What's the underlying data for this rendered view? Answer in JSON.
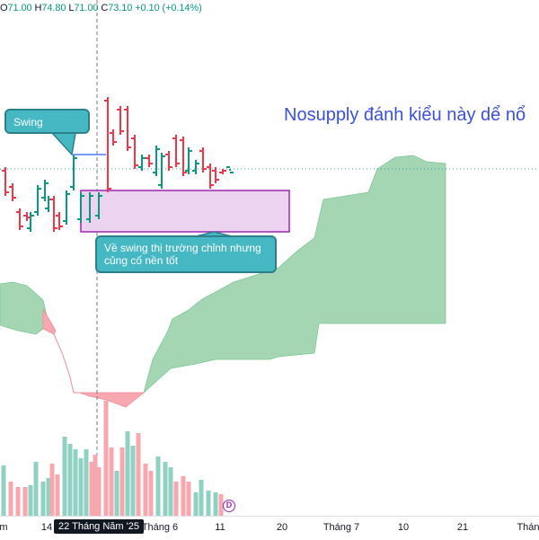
{
  "header": {
    "open_label": "O",
    "open": "71.00",
    "high_label": "H",
    "high": "74.80",
    "low_label": "L",
    "low": "71.00",
    "close_label": "C",
    "close": "73.10",
    "change": "+0.10 (+0.14%)"
  },
  "annotations": {
    "swing_label": "Swing",
    "note_label": "Về swing thị trường chỉnh nhưng củng cố nền tốt",
    "big_note": "Nosupply đánh kiểu này dể nổ"
  },
  "x_axis": {
    "ticks": [
      "m",
      "14",
      "22 Tháng Năm '25",
      "Tháng 6",
      "11",
      "20",
      "Tháng 7",
      "10",
      "21",
      "Thán"
    ],
    "selected_tick": "22 Tháng Năm '25"
  },
  "markers": {
    "dividend_badge": "D"
  },
  "colors": {
    "up": "#089981",
    "down": "#f23645",
    "cloud_up": "#a5d6b4",
    "cloud_down": "#f7a8b0",
    "vol_up": "#8fd2c4",
    "vol_down": "#f7a7ae",
    "zone_fill": "#ecd4f0",
    "zone_border": "#9c27b0",
    "callout": "#46b8c4",
    "text_blue": "#3c50dc"
  },
  "chart_data": {
    "type": "ohlc",
    "price": {
      "last_close": 73.1,
      "bars": [
        {
          "dir": "down"
        },
        {
          "dir": "down"
        },
        {
          "dir": "down"
        },
        {
          "dir": "down"
        },
        {
          "dir": "up"
        },
        {
          "dir": "up"
        },
        {
          "dir": "up"
        },
        {
          "dir": "up"
        },
        {
          "dir": "down"
        },
        {
          "dir": "down"
        },
        {
          "dir": "up"
        },
        {
          "dir": "up"
        },
        {
          "dir": "up"
        },
        {
          "dir": "up"
        },
        {
          "dir": "up"
        },
        {
          "dir": "down"
        },
        {
          "dir": "down"
        },
        {
          "dir": "down"
        },
        {
          "dir": "down"
        },
        {
          "dir": "down"
        },
        {
          "dir": "up"
        },
        {
          "dir": "down"
        },
        {
          "dir": "up"
        },
        {
          "dir": "up"
        },
        {
          "dir": "down"
        },
        {
          "dir": "down"
        },
        {
          "dir": "down"
        },
        {
          "dir": "up"
        },
        {
          "dir": "up"
        }
      ]
    },
    "volume": {
      "bars": [
        {
          "dir": "up"
        },
        {
          "dir": "down"
        },
        {
          "dir": "down"
        },
        {
          "dir": "down"
        },
        {
          "dir": "up"
        },
        {
          "dir": "up"
        },
        {
          "dir": "up"
        },
        {
          "dir": "up"
        },
        {
          "dir": "down"
        },
        {
          "dir": "down"
        },
        {
          "dir": "up"
        },
        {
          "dir": "up"
        },
        {
          "dir": "up"
        },
        {
          "dir": "up"
        },
        {
          "dir": "up"
        },
        {
          "dir": "down"
        },
        {
          "dir": "down"
        },
        {
          "dir": "down"
        },
        {
          "dir": "down"
        },
        {
          "dir": "down"
        },
        {
          "dir": "up"
        },
        {
          "dir": "down"
        },
        {
          "dir": "up"
        },
        {
          "dir": "up"
        },
        {
          "dir": "down"
        },
        {
          "dir": "down"
        },
        {
          "dir": "down"
        },
        {
          "dir": "up"
        },
        {
          "dir": "up"
        }
      ]
    },
    "indicator": "Ichimoku cloud"
  }
}
